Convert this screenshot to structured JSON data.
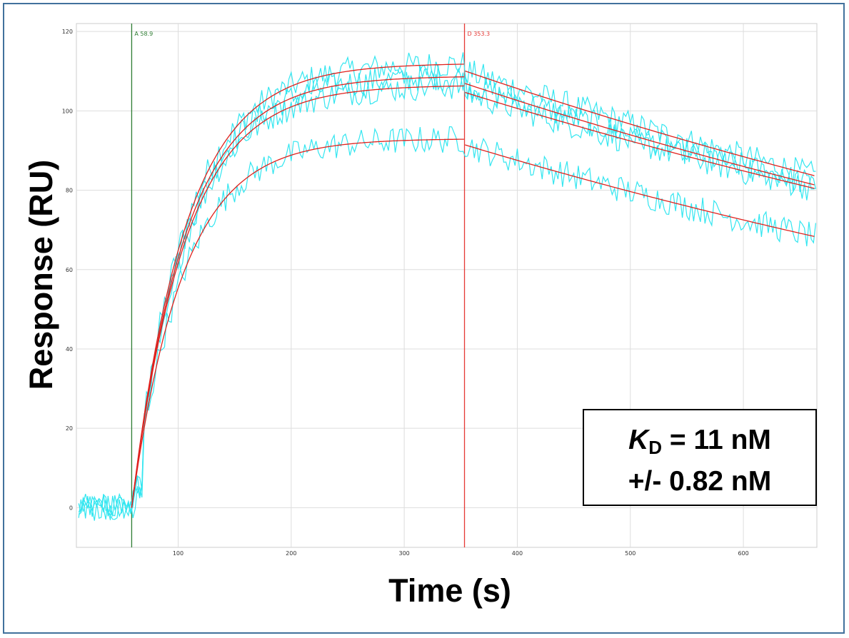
{
  "chart_data": {
    "type": "line",
    "title": "",
    "xlabel": "Time (s)",
    "ylabel": "Response (RU)",
    "xlim": [
      10,
      665
    ],
    "ylim": [
      -10,
      122
    ],
    "x_ticks": [
      100,
      200,
      300,
      400,
      500,
      600
    ],
    "y_ticks": [
      0,
      20,
      40,
      60,
      80,
      100,
      120
    ],
    "grid": true,
    "markers": [
      {
        "label": "A 58.9",
        "x": 58.9,
        "color": "#2e7d32"
      },
      {
        "label": "D 353.3",
        "x": 353.3,
        "color": "#e53935"
      }
    ],
    "fit_curves": [
      {
        "baseline": 0,
        "association_start": 58.9,
        "dissociation_start": 353.3,
        "plateau_max": 112,
        "kobs": 0.021,
        "dissociation_end_value": 83.5
      },
      {
        "baseline": 0,
        "association_start": 58.9,
        "dissociation_start": 353.3,
        "plateau_max": 108.8,
        "kobs": 0.021,
        "dissociation_end_value": 81.2
      },
      {
        "baseline": 0,
        "association_start": 58.9,
        "dissociation_start": 353.3,
        "plateau_max": 106.5,
        "kobs": 0.021,
        "dissociation_end_value": 80.3
      },
      {
        "baseline": 0,
        "association_start": 58.9,
        "dissociation_start": 353.3,
        "plateau_max": 93,
        "kobs": 0.022,
        "dissociation_end_value": 68.2
      }
    ],
    "colors": {
      "data": "#33e6f0",
      "fit": "#e0211d",
      "grid": "#dddddd"
    }
  },
  "annotation": {
    "kd_symbol": "K",
    "kd_subscript": "D",
    "kd_value": " = 11 nM",
    "kd_error": "+/- 0.82 nM"
  }
}
